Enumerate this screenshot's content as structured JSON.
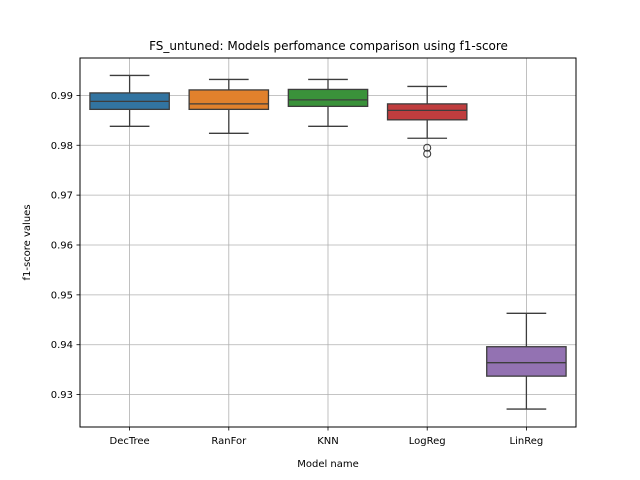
{
  "chart_data": {
    "type": "box",
    "title": "FS_untuned: Models perfomance comparison using f1-score",
    "xlabel": "Model name",
    "ylabel": "f1-score values",
    "ylim": [
      0.9235,
      0.9975
    ],
    "yticks": [
      0.93,
      0.94,
      0.95,
      0.96,
      0.97,
      0.98,
      0.99
    ],
    "ytick_labels": [
      "0.93",
      "0.94",
      "0.95",
      "0.96",
      "0.97",
      "0.98",
      "0.99"
    ],
    "grid": true,
    "categories": [
      "DecTree",
      "RanFor",
      "KNN",
      "LogReg",
      "LinReg"
    ],
    "boxes": [
      {
        "category": "DecTree",
        "whisker_low": 0.9838,
        "q1": 0.9872,
        "median": 0.9888,
        "q3": 0.9905,
        "whisker_high": 0.994,
        "outliers": [],
        "color": "#3274a1"
      },
      {
        "category": "RanFor",
        "whisker_low": 0.9824,
        "q1": 0.9872,
        "median": 0.9883,
        "q3": 0.9911,
        "whisker_high": 0.9932,
        "outliers": [],
        "color": "#e1812c"
      },
      {
        "category": "KNN",
        "whisker_low": 0.9838,
        "q1": 0.9878,
        "median": 0.9891,
        "q3": 0.9912,
        "whisker_high": 0.9932,
        "outliers": [],
        "color": "#3a923a"
      },
      {
        "category": "LogReg",
        "whisker_low": 0.9814,
        "q1": 0.9851,
        "median": 0.987,
        "q3": 0.9883,
        "whisker_high": 0.9918,
        "outliers": [
          0.9795,
          0.9783
        ],
        "color": "#c03d3e"
      },
      {
        "category": "LinReg",
        "whisker_low": 0.9271,
        "q1": 0.9337,
        "median": 0.9364,
        "q3": 0.9396,
        "whisker_high": 0.9463,
        "outliers": [],
        "color": "#9372b2"
      }
    ]
  }
}
